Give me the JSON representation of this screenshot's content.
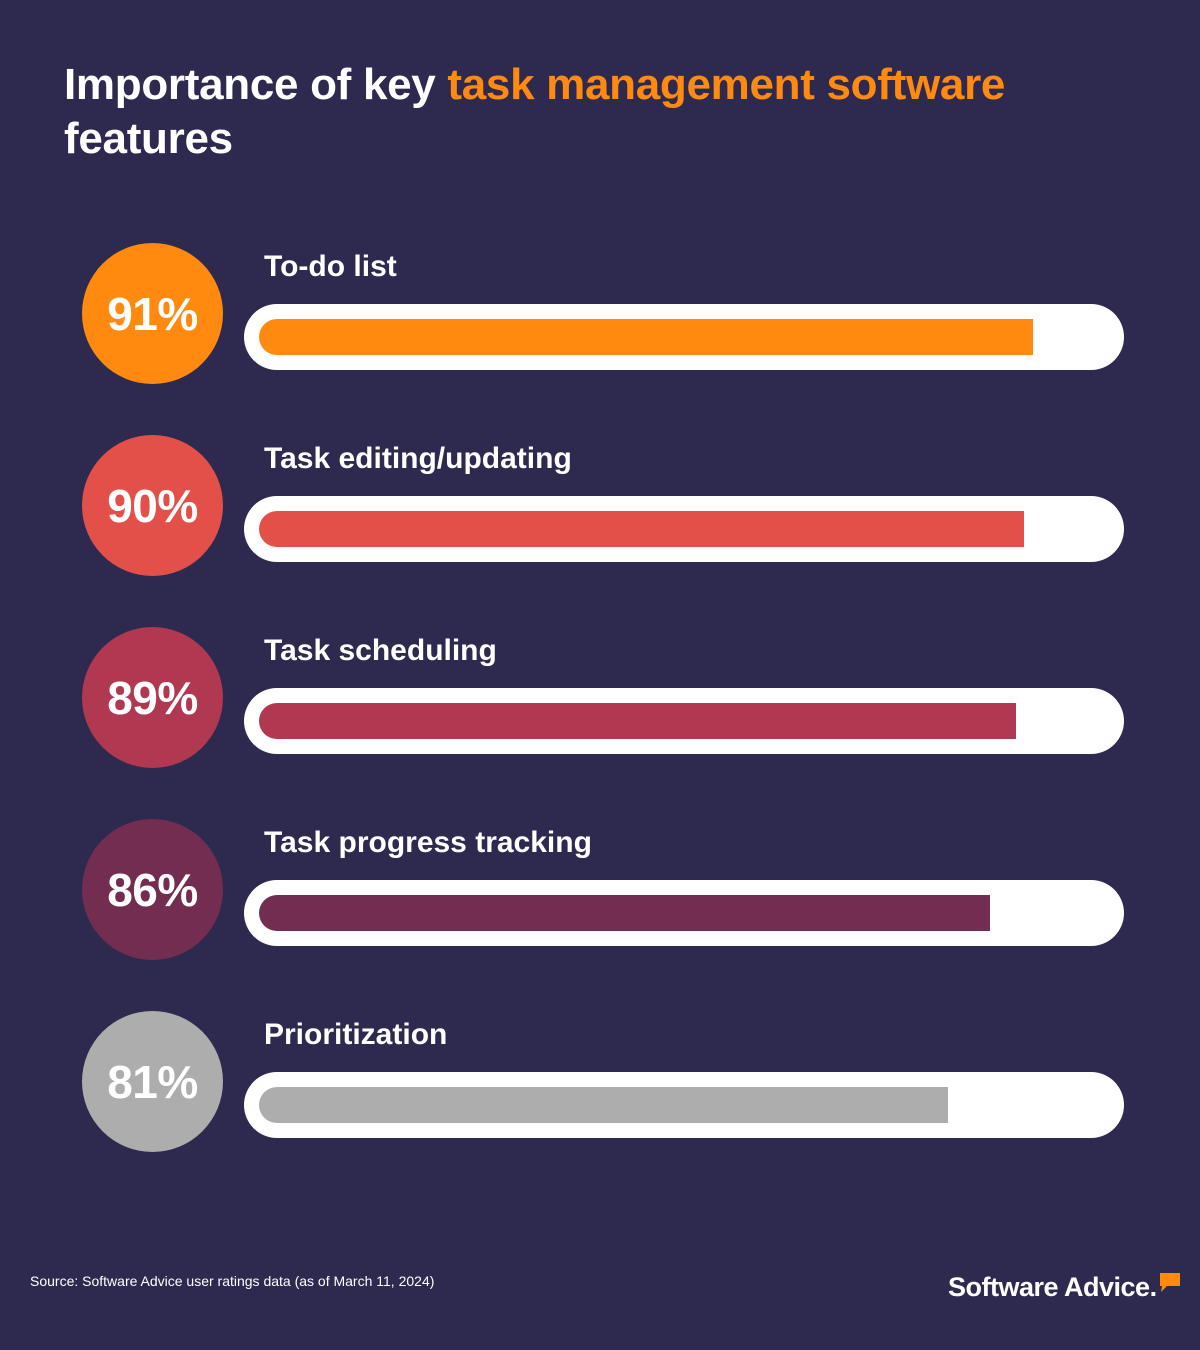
{
  "title": {
    "part1": "Importance of key ",
    "highlight": "task management software",
    "part2": " features"
  },
  "chart_data": {
    "type": "bar",
    "orientation": "horizontal",
    "categories": [
      "To-do list",
      "Task editing/updating",
      "Task scheduling",
      "Task progress tracking",
      "Prioritization"
    ],
    "values": [
      91,
      90,
      89,
      86,
      81
    ],
    "value_labels": [
      "91%",
      "90%",
      "89%",
      "86%",
      "81%"
    ],
    "colors": [
      "#ff8a0f",
      "#e3504a",
      "#b03851",
      "#722d50",
      "#adadad"
    ],
    "xlim": [
      0,
      100
    ],
    "grid": false,
    "legend": "none"
  },
  "footer": {
    "source": "Source: Software Advice user ratings data (as of March 11,  2024)",
    "logo": "Software Advice.",
    "logo_icon": "speech-bubble-icon",
    "logo_icon_color": "#ff8a0f"
  }
}
